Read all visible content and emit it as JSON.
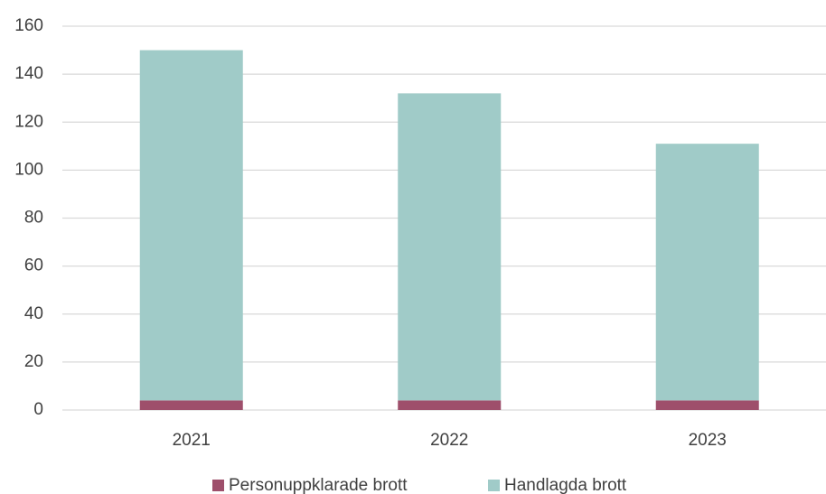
{
  "chart_data": {
    "type": "stacked_bar",
    "categories": [
      "2021",
      "2022",
      "2023"
    ],
    "series": [
      {
        "name": "Personuppklarade brott",
        "color": "#9e4f6b",
        "values": [
          4,
          4,
          4
        ]
      },
      {
        "name": "Handlagda brott",
        "color": "#a0cbc8",
        "values": [
          146,
          128,
          107
        ]
      }
    ],
    "ylim": [
      0,
      160
    ],
    "yticks": [
      0,
      20,
      40,
      60,
      80,
      100,
      120,
      140,
      160
    ],
    "grid": true,
    "legend": "bottom"
  }
}
